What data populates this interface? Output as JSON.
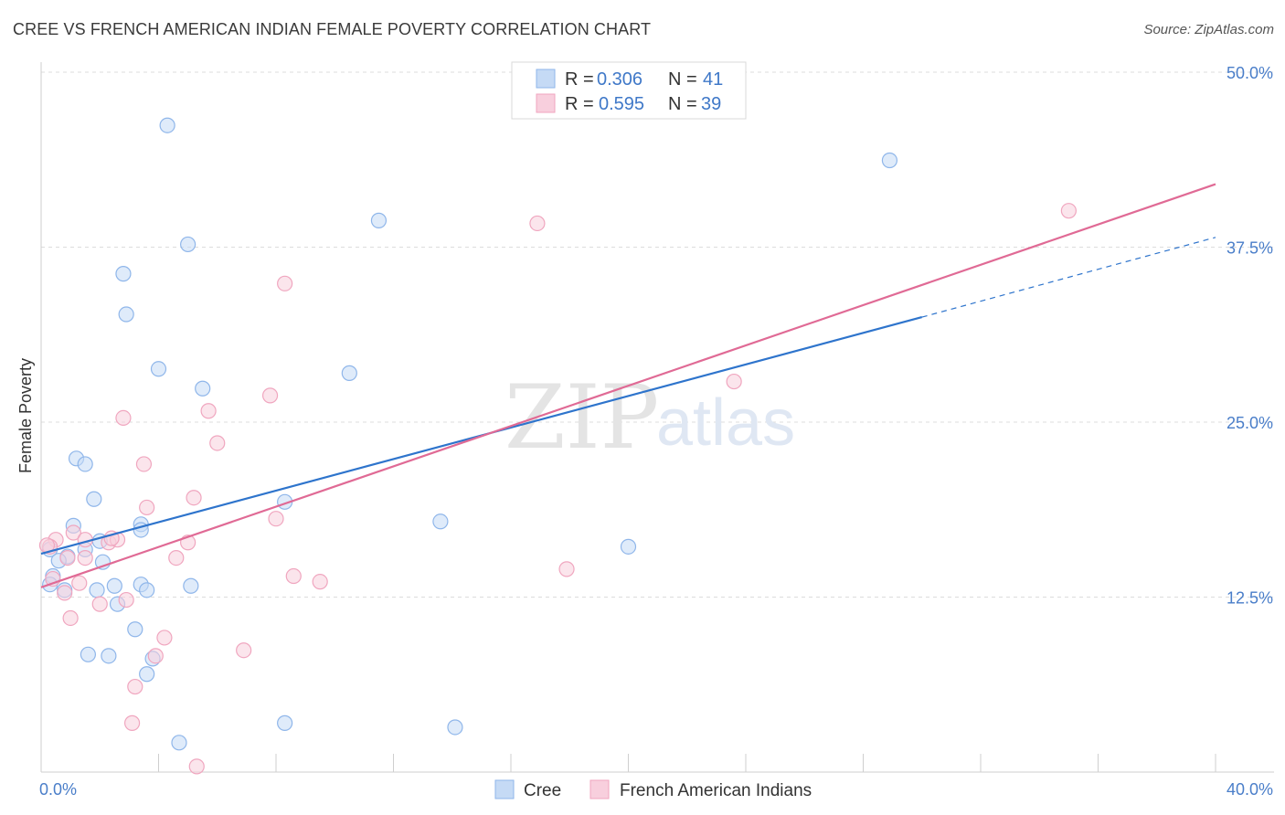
{
  "title": "CREE VS FRENCH AMERICAN INDIAN FEMALE POVERTY CORRELATION CHART",
  "source": "Source: ZipAtlas.com",
  "watermark": {
    "part1": "ZIP",
    "part2": "atlas"
  },
  "chart_data": {
    "type": "scatter",
    "ylabel": "Female Poverty",
    "xlim": [
      0,
      40
    ],
    "ylim": [
      0,
      50
    ],
    "x_tick_labels": [
      {
        "value": 0,
        "label": "0.0%"
      },
      {
        "value": 40,
        "label": "40.0%"
      }
    ],
    "x_minor_ticks": [
      0,
      4,
      8,
      12,
      16,
      20,
      24,
      28,
      32,
      36,
      40
    ],
    "y_tick_labels": [
      {
        "value": 12.5,
        "label": "12.5%"
      },
      {
        "value": 25,
        "label": "25.0%"
      },
      {
        "value": 37.5,
        "label": "37.5%"
      },
      {
        "value": 50,
        "label": "50.0%"
      }
    ],
    "legend": [
      {
        "name": "Cree",
        "r_label": "R = ",
        "r_value": "0.306",
        "n_label": "N = ",
        "n_value": "41",
        "color": "#8fb6ea",
        "fill": "#c5daf5",
        "line": "#2e74cc"
      },
      {
        "name": "French American Indians",
        "r_label": "R = ",
        "r_value": "0.595",
        "n_label": "N = ",
        "n_value": "39",
        "color": "#f0a6bf",
        "fill": "#f8cfdd",
        "line": "#e06a95"
      }
    ],
    "series": [
      {
        "name": "Cree",
        "points": [
          [
            4.3,
            46.2
          ],
          [
            28.9,
            43.7
          ],
          [
            11.5,
            39.4
          ],
          [
            5.0,
            37.7
          ],
          [
            2.8,
            35.6
          ],
          [
            2.9,
            32.7
          ],
          [
            4.0,
            28.8
          ],
          [
            10.5,
            28.5
          ],
          [
            5.5,
            27.4
          ],
          [
            1.2,
            22.4
          ],
          [
            1.5,
            22.0
          ],
          [
            1.8,
            19.5
          ],
          [
            8.3,
            19.3
          ],
          [
            13.6,
            17.9
          ],
          [
            1.1,
            17.6
          ],
          [
            3.4,
            17.7
          ],
          [
            3.4,
            17.3
          ],
          [
            2.0,
            16.5
          ],
          [
            1.5,
            15.9
          ],
          [
            20.0,
            16.1
          ],
          [
            0.3,
            15.9
          ],
          [
            0.9,
            15.4
          ],
          [
            0.6,
            15.1
          ],
          [
            2.1,
            15.0
          ],
          [
            0.4,
            14.0
          ],
          [
            0.3,
            13.4
          ],
          [
            0.8,
            13.0
          ],
          [
            1.9,
            13.0
          ],
          [
            2.5,
            13.3
          ],
          [
            3.4,
            13.4
          ],
          [
            3.6,
            13.0
          ],
          [
            5.1,
            13.3
          ],
          [
            2.6,
            12.0
          ],
          [
            3.2,
            10.2
          ],
          [
            1.6,
            8.4
          ],
          [
            2.3,
            8.3
          ],
          [
            3.8,
            8.1
          ],
          [
            3.6,
            7.0
          ],
          [
            8.3,
            3.5
          ],
          [
            14.1,
            3.2
          ],
          [
            4.7,
            2.1
          ]
        ]
      },
      {
        "name": "French American Indians",
        "points": [
          [
            35.0,
            40.1
          ],
          [
            16.9,
            39.2
          ],
          [
            8.3,
            34.9
          ],
          [
            23.6,
            27.9
          ],
          [
            7.8,
            26.9
          ],
          [
            5.7,
            25.8
          ],
          [
            2.8,
            25.3
          ],
          [
            6.0,
            23.5
          ],
          [
            3.5,
            22.0
          ],
          [
            5.2,
            19.6
          ],
          [
            3.6,
            18.9
          ],
          [
            8.0,
            18.1
          ],
          [
            1.1,
            17.1
          ],
          [
            0.5,
            16.6
          ],
          [
            1.5,
            16.6
          ],
          [
            2.3,
            16.4
          ],
          [
            2.6,
            16.6
          ],
          [
            5.0,
            16.4
          ],
          [
            0.3,
            16.1
          ],
          [
            1.5,
            15.3
          ],
          [
            0.9,
            15.3
          ],
          [
            4.6,
            15.3
          ],
          [
            17.9,
            14.5
          ],
          [
            8.6,
            14.0
          ],
          [
            9.5,
            13.6
          ],
          [
            1.3,
            13.5
          ],
          [
            0.4,
            13.8
          ],
          [
            0.8,
            12.8
          ],
          [
            2.9,
            12.3
          ],
          [
            2.0,
            12.0
          ],
          [
            1.0,
            11.0
          ],
          [
            4.2,
            9.6
          ],
          [
            6.9,
            8.7
          ],
          [
            3.9,
            8.3
          ],
          [
            3.2,
            6.1
          ],
          [
            3.1,
            3.5
          ],
          [
            5.3,
            0.4
          ],
          [
            0.2,
            16.2
          ],
          [
            2.4,
            16.7
          ]
        ]
      }
    ],
    "trend_lines": [
      {
        "series": "Cree",
        "solid": [
          [
            0,
            15.6
          ],
          [
            30,
            32.5
          ]
        ],
        "dashed": [
          [
            30,
            32.5
          ],
          [
            40,
            38.2
          ]
        ]
      },
      {
        "series": "French American Indians",
        "solid": [
          [
            0,
            13.2
          ],
          [
            40,
            42.0
          ]
        ]
      }
    ]
  }
}
